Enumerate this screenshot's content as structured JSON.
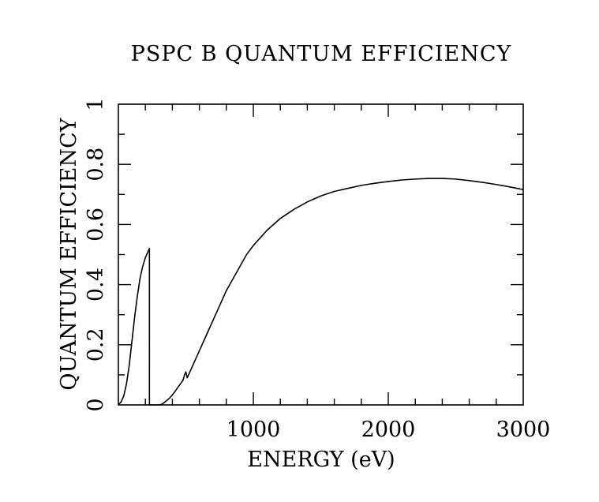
{
  "chart_data": {
    "type": "line",
    "title": "PSPC B QUANTUM EFFICIENCY",
    "xlabel": "ENERGY (eV)",
    "ylabel": "QUANTUM EFFICIENCY",
    "xlim": [
      0,
      3000
    ],
    "ylim": [
      0,
      1
    ],
    "x_ticks": [
      1000,
      2000,
      3000
    ],
    "x_tick_labels": [
      "1000",
      "2000",
      "3000"
    ],
    "y_ticks": [
      0,
      0.2,
      0.4,
      0.6,
      0.8,
      1
    ],
    "y_tick_labels": [
      "0",
      "0.2",
      "0.4",
      "0.6",
      "0.8",
      "1"
    ],
    "grid": false,
    "series": [
      {
        "x": [
          0,
          20,
          40,
          60,
          80,
          100,
          120,
          140,
          160,
          180,
          200,
          220,
          230,
          230,
          260,
          280,
          300,
          320,
          340,
          360,
          380,
          400,
          420,
          440,
          460,
          480,
          490,
          500,
          510,
          520,
          540,
          560,
          580,
          600,
          650,
          700,
          750,
          800,
          850,
          900,
          950,
          1000,
          1100,
          1200,
          1300,
          1400,
          1500,
          1600,
          1700,
          1800,
          1900,
          2000,
          2100,
          2200,
          2300,
          2400,
          2500,
          2600,
          2700,
          2800,
          2900,
          3000
        ],
        "y": [
          0,
          0.01,
          0.03,
          0.07,
          0.13,
          0.21,
          0.29,
          0.36,
          0.42,
          0.46,
          0.49,
          0.51,
          0.52,
          0,
          0,
          0,
          0,
          0.002,
          0.008,
          0.015,
          0.023,
          0.033,
          0.045,
          0.058,
          0.07,
          0.083,
          0.1,
          0.11,
          0.09,
          0.1,
          0.12,
          0.14,
          0.16,
          0.18,
          0.23,
          0.28,
          0.33,
          0.38,
          0.42,
          0.46,
          0.5,
          0.53,
          0.58,
          0.62,
          0.65,
          0.675,
          0.695,
          0.71,
          0.72,
          0.73,
          0.737,
          0.743,
          0.748,
          0.751,
          0.753,
          0.753,
          0.751,
          0.746,
          0.74,
          0.733,
          0.725,
          0.716
        ]
      }
    ]
  }
}
